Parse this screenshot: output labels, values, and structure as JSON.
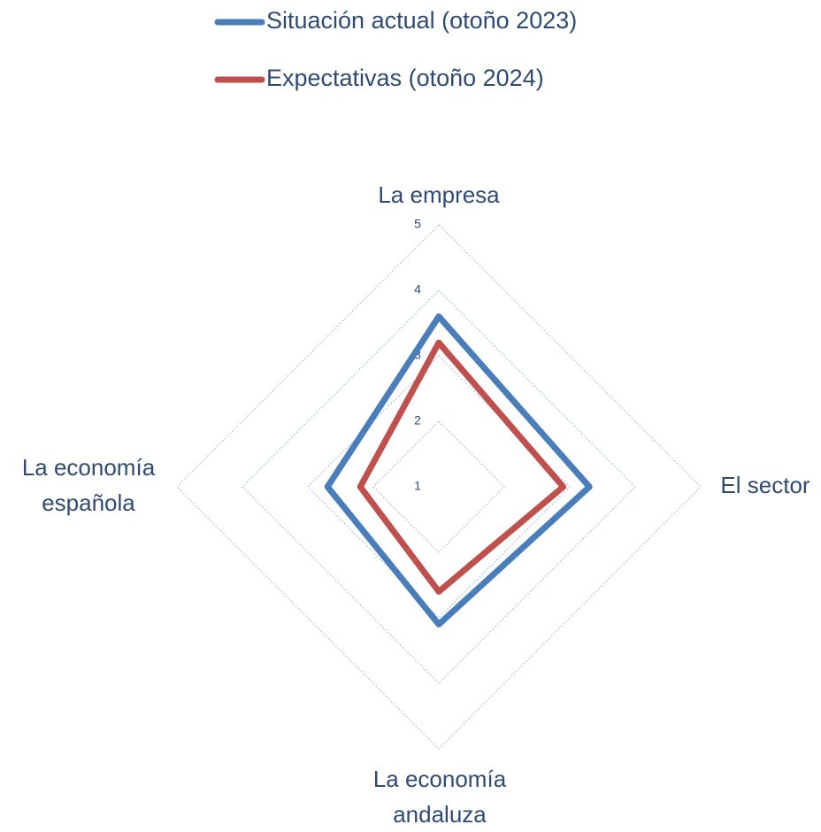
{
  "chart_data": {
    "type": "radar",
    "categories": [
      "La empresa",
      "El sector",
      "La economía andaluza",
      "La economía española"
    ],
    "series": [
      {
        "name": "Situación actual (otoño 2023)",
        "color": "#4a7ebb",
        "values": [
          3.6,
          3.3,
          3.1,
          2.7
        ]
      },
      {
        "name": "Expectativas (otoño 2024)",
        "color": "#c0504d",
        "values": [
          3.2,
          2.9,
          2.6,
          2.2
        ]
      }
    ],
    "ylim": [
      1,
      5
    ],
    "yticks": [
      1,
      2,
      3,
      4,
      5
    ],
    "grid": true,
    "legend": "top"
  }
}
